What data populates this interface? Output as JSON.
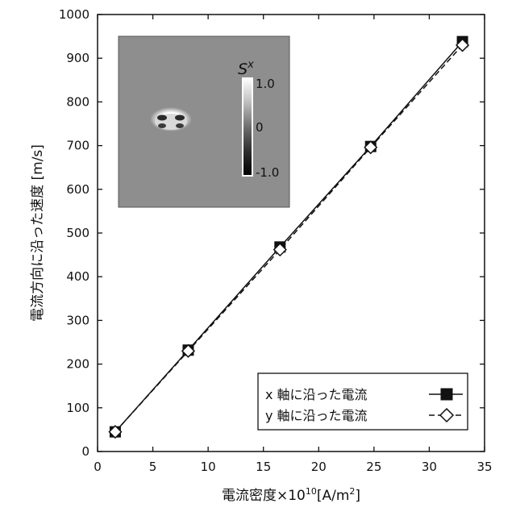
{
  "chart_data": {
    "type": "line",
    "xlabel": "電流密度×10",
    "xlabel_sup": "10",
    "xlabel_unit": "[A/m",
    "xlabel_unit_sup": "2",
    "xlabel_unit_end": "]",
    "ylabel": "電流方向に沿った速度 [m/s]",
    "xlim": [
      0,
      35
    ],
    "ylim": [
      0,
      1000
    ],
    "xticks": [
      "0",
      "5",
      "10",
      "15",
      "20",
      "25",
      "30",
      "35"
    ],
    "yticks": [
      "0",
      "100",
      "200",
      "300",
      "400",
      "500",
      "600",
      "700",
      "800",
      "900",
      "1000"
    ],
    "grid": false,
    "legend_position": "bottom-right",
    "series": [
      {
        "name": "x 軸に沿った電流",
        "marker": "filled-square",
        "line": "solid",
        "x": [
          1.6,
          8.2,
          16.5,
          24.7,
          33.0
        ],
        "y": [
          45,
          232,
          468,
          698,
          938
        ]
      },
      {
        "name": "y 軸に沿った電流",
        "marker": "open-diamond",
        "line": "dashed",
        "x": [
          1.6,
          8.2,
          16.5,
          24.7,
          33.0
        ],
        "y": [
          45,
          230,
          462,
          696,
          930
        ]
      }
    ],
    "inset": {
      "colorbar_title": "S",
      "colorbar_title_sup": "x",
      "colorbar_labels": [
        "1.0",
        "0",
        "-1.0"
      ]
    }
  }
}
